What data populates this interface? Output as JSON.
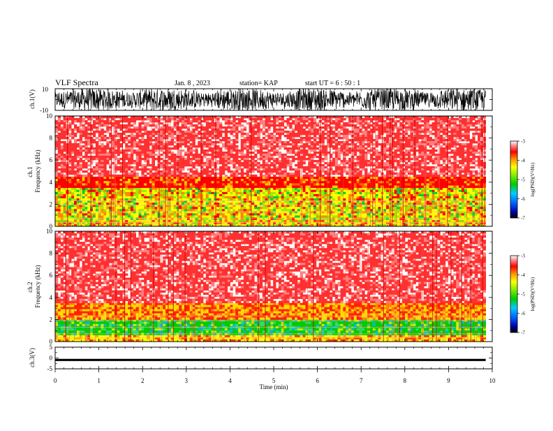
{
  "header": {
    "title": "VLF Spectra",
    "date": "Jan. 8 , 2023",
    "station": "station= KAP",
    "start_ut": "start  UT =  6 : 50 : 1"
  },
  "chart_data": [
    {
      "type": "line",
      "name": "ch1-waveform",
      "ylabel": "ch.1(V)",
      "ylim": [
        -10,
        10
      ],
      "ytick_labels": [
        "-10",
        "10"
      ],
      "xlim": [
        0,
        10
      ],
      "data_extent_min": 9.85
    },
    {
      "type": "heatmap",
      "name": "ch1-spectrogram",
      "ylabel": "ch.1\nFrequency (kHz)",
      "ylabel_lines": [
        "ch.1",
        "Frequency  (kHz)"
      ],
      "ylim": [
        0,
        10
      ],
      "ytick_labels": [
        "0",
        "2",
        "4",
        "6",
        "8",
        "10"
      ],
      "colorbar": {
        "label": "log(PSD)(V²/Hz)",
        "range": [
          -7,
          -3
        ],
        "tick_labels": [
          "-3",
          "-4",
          "-5",
          "-6",
          "-7"
        ]
      },
      "band_profile": [
        {
          "freq_khz": [
            0,
            0.6
          ],
          "level": "yellow-green"
        },
        {
          "freq_khz": [
            0.6,
            3.5
          ],
          "level": "green-yellow"
        },
        {
          "freq_khz": [
            3.5,
            4.5
          ],
          "level": "red"
        },
        {
          "freq_khz": [
            4.5,
            10
          ],
          "level": "light-red"
        }
      ]
    },
    {
      "type": "heatmap",
      "name": "ch2-spectrogram",
      "ylabel": "ch.2\nFrequency (kHz)",
      "ylabel_lines": [
        "ch.2",
        "Frequency  (kHz)"
      ],
      "ylim": [
        0,
        10
      ],
      "ytick_labels": [
        "0",
        "2",
        "4",
        "6",
        "8",
        "10"
      ],
      "colorbar": {
        "label": "log(PSD)(V²/Hz)",
        "range": [
          -7,
          -3
        ],
        "tick_labels": [
          "-3",
          "-4",
          "-5",
          "-6",
          "-7"
        ]
      },
      "band_profile": [
        {
          "freq_khz": [
            0,
            0.6
          ],
          "level": "yellow"
        },
        {
          "freq_khz": [
            0.6,
            2.0
          ],
          "level": "green"
        },
        {
          "freq_khz": [
            2.0,
            3.5
          ],
          "level": "yellow-red"
        },
        {
          "freq_khz": [
            3.5,
            10
          ],
          "level": "light-red"
        }
      ]
    },
    {
      "type": "line",
      "name": "ch3-waveform",
      "ylabel": "ch.3(V)",
      "ylim": [
        -5,
        5
      ],
      "ytick_labels": [
        "-5",
        "0",
        "5"
      ],
      "xlim": [
        0,
        10
      ],
      "level_v": [
        -1.4,
        -0.4
      ],
      "xlabel": "Time  (min)",
      "xtick_labels": [
        "0",
        "1",
        "2",
        "3",
        "4",
        "5",
        "6",
        "7",
        "8",
        "9",
        "10"
      ]
    }
  ],
  "colors": {
    "background": "#ffffff",
    "trace": "#000000",
    "high_psd": "#ff0000",
    "mid_psd": "#00cc00",
    "low_psd": "#0000aa"
  }
}
